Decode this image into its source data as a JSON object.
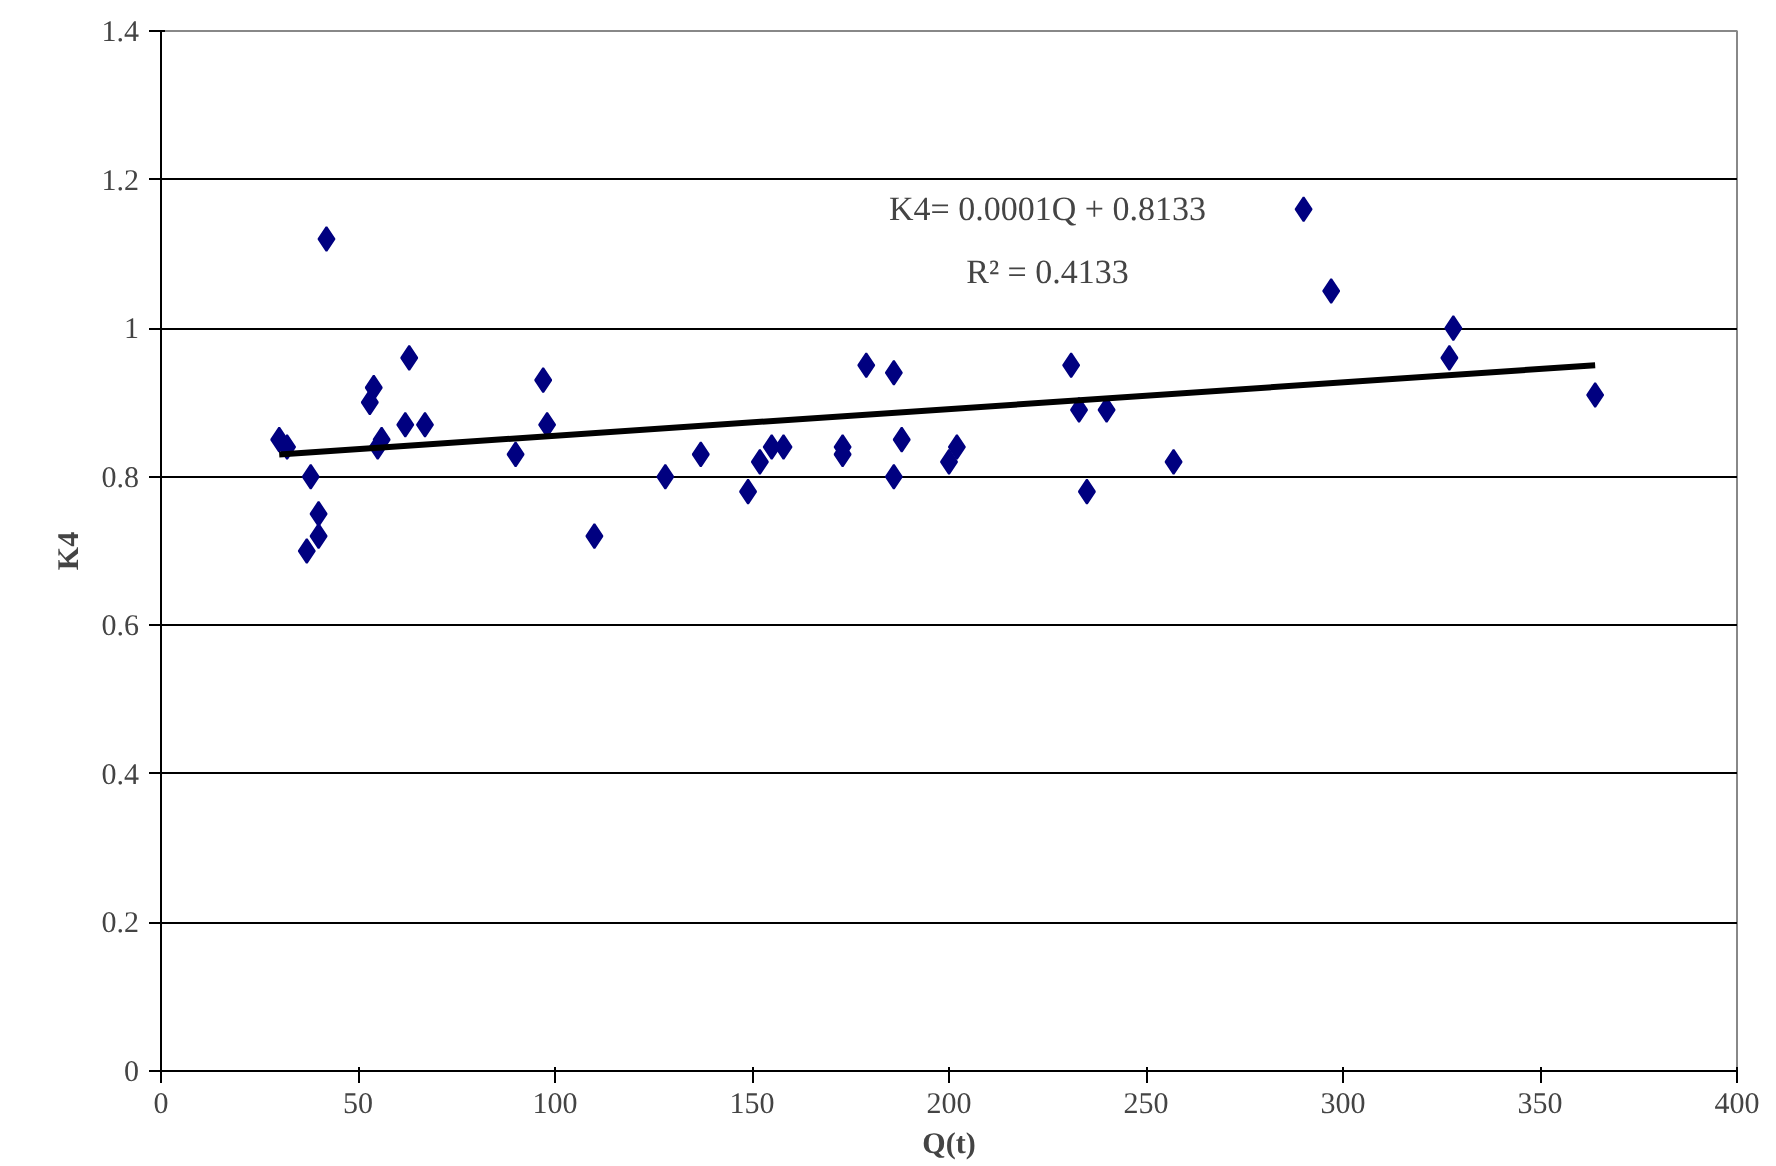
{
  "chart_data": {
    "type": "scatter",
    "xlabel": "Q(t)",
    "ylabel": "K4",
    "xlim": [
      0,
      400
    ],
    "xticks": [
      0,
      50,
      100,
      150,
      200,
      250,
      300,
      350,
      400
    ],
    "ylim": [
      0,
      1.4
    ],
    "yticks": [
      0,
      0.2,
      0.4,
      0.6,
      0.8,
      1,
      1.2,
      1.4
    ],
    "grid": "y",
    "marker": "diamond",
    "annotations": [
      "K4= 0.0001Q + 0.8133",
      "R² = 0.4133"
    ],
    "series": [
      {
        "color": "#000080",
        "x": [
          30,
          32,
          38,
          37,
          40,
          40,
          42,
          53,
          54,
          55,
          56,
          62,
          63,
          67,
          90,
          97,
          98,
          110,
          128,
          137,
          149,
          152,
          155,
          158,
          173,
          173,
          179,
          186,
          186,
          188,
          200,
          202,
          231,
          233,
          235,
          240,
          257,
          290,
          297,
          327,
          328,
          364
        ],
        "values": [
          0.85,
          0.84,
          0.8,
          0.7,
          0.72,
          0.75,
          1.12,
          0.9,
          0.92,
          0.84,
          0.85,
          0.87,
          0.96,
          0.87,
          0.83,
          0.93,
          0.87,
          0.72,
          0.8,
          0.83,
          0.78,
          0.82,
          0.84,
          0.84,
          0.84,
          0.83,
          0.95,
          0.94,
          0.8,
          0.85,
          0.82,
          0.84,
          0.95,
          0.89,
          0.78,
          0.89,
          0.82,
          1.16,
          1.05,
          0.96,
          1.0,
          0.91
        ]
      },
      {
        "type": "line",
        "marker": "none",
        "color": "#000000",
        "x": [
          30,
          364
        ],
        "values": [
          0.83,
          0.95
        ]
      }
    ]
  }
}
